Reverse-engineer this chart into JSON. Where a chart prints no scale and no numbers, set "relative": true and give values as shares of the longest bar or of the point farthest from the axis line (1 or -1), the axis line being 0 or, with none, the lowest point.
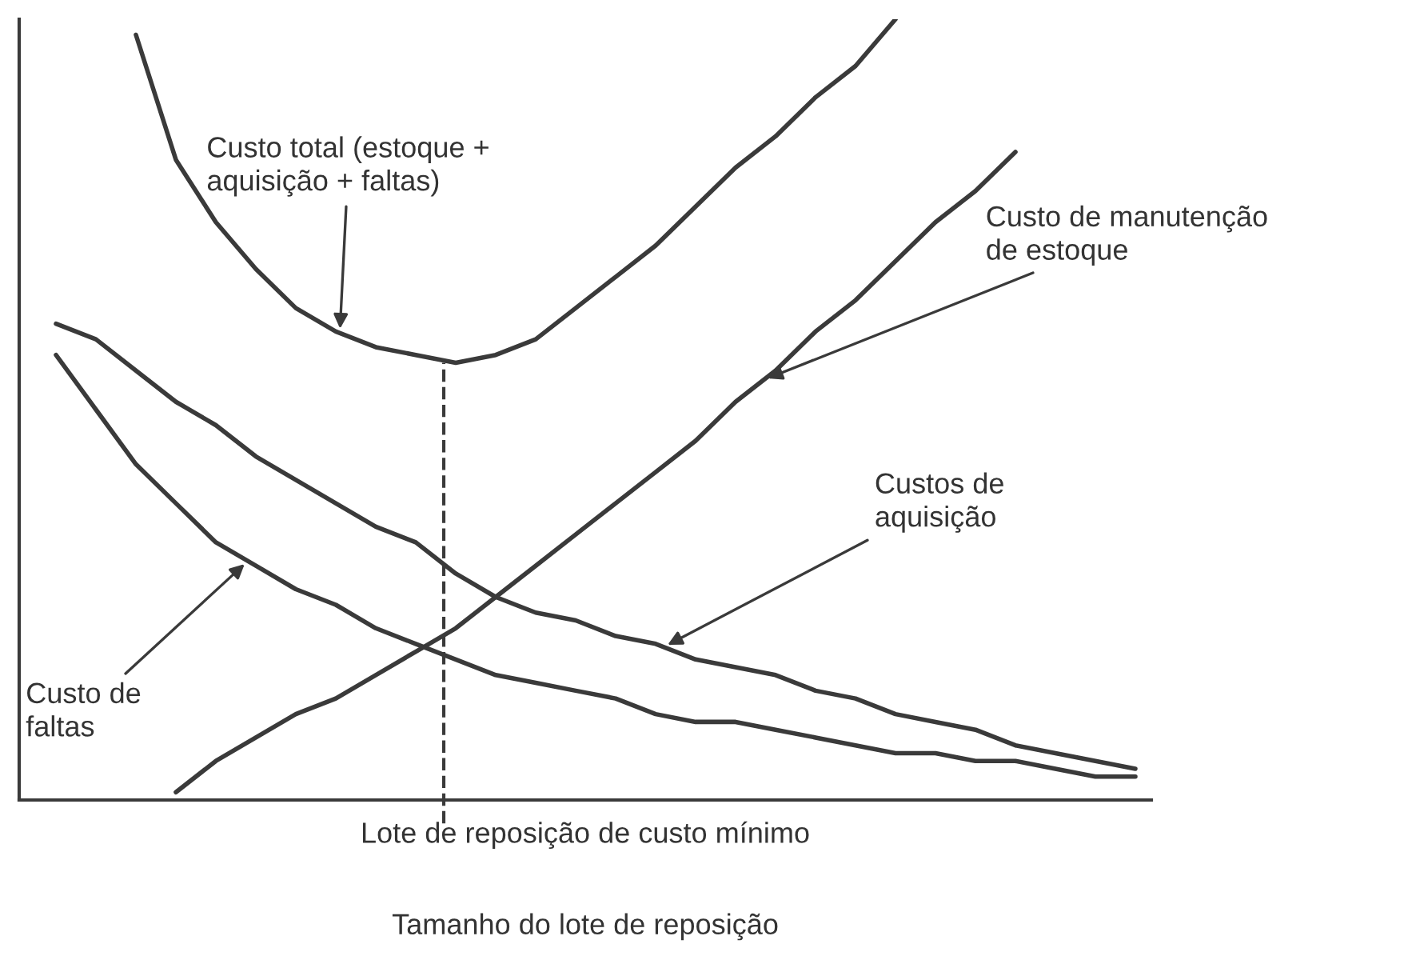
{
  "chart_data": {
    "type": "line",
    "relative": true,
    "xlabel": "Tamanho do lote de reposição",
    "grid": false,
    "legend": false,
    "marker": "none",
    "line_style": "solid",
    "categories": [
      null,
      null,
      null,
      null,
      null,
      null,
      null,
      null,
      null,
      null,
      null,
      null,
      null,
      null,
      null,
      null,
      null,
      null,
      null,
      null,
      null,
      null,
      null,
      null,
      null,
      null,
      null,
      null
    ],
    "series": [
      {
        "color": "#3a3a3a",
        "values": [
          null,
          null,
          0.98,
          0.82,
          0.74,
          0.68,
          0.63,
          0.6,
          0.58,
          0.57,
          0.56,
          0.57,
          0.59,
          0.63,
          0.67,
          0.71,
          0.76,
          0.81,
          0.85,
          0.9,
          0.94,
          1.0,
          null,
          null,
          null,
          null,
          null,
          null
        ]
      },
      {
        "color": "#3a3a3a",
        "values": [
          null,
          null,
          null,
          0.01,
          0.05,
          0.08,
          0.11,
          0.13,
          0.16,
          0.19,
          0.22,
          0.26,
          0.3,
          0.34,
          0.38,
          0.42,
          0.46,
          0.51,
          0.55,
          0.6,
          0.64,
          0.69,
          0.74,
          0.78,
          0.83,
          null,
          null,
          null
        ]
      },
      {
        "color": "#3a3a3a",
        "values": [
          0.61,
          0.59,
          0.55,
          0.51,
          0.48,
          0.44,
          0.41,
          0.38,
          0.35,
          0.33,
          0.29,
          0.26,
          0.24,
          0.23,
          0.21,
          0.2,
          0.18,
          0.17,
          0.16,
          0.14,
          0.13,
          0.11,
          0.1,
          0.09,
          0.07,
          0.06,
          0.05,
          0.04
        ]
      },
      {
        "color": "#3a3a3a",
        "values": [
          0.57,
          0.5,
          0.43,
          0.38,
          0.33,
          0.3,
          0.27,
          0.25,
          0.22,
          0.2,
          0.18,
          0.16,
          0.15,
          0.14,
          0.13,
          0.11,
          0.1,
          0.1,
          0.09,
          0.08,
          0.07,
          0.06,
          0.06,
          0.05,
          0.05,
          0.04,
          0.03,
          0.03
        ]
      }
    ],
    "annotations": [
      "Custo total (estoque +\naquisição + faltas)",
      "Custo de manutenção\nde estoque",
      "Custos de\naquisição",
      "Custo de\nfaltas",
      "Lote de reposição de custo mínimo"
    ]
  }
}
